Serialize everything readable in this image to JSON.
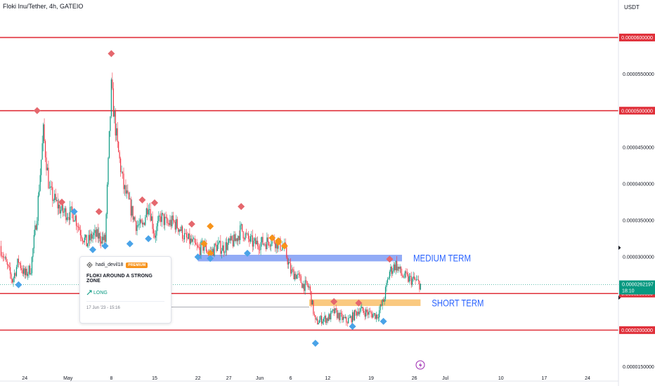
{
  "header": {
    "symbol_title": "Floki Inu/Tether, 4h, GATEIO",
    "currency": "USDT"
  },
  "colors": {
    "up": "#089981",
    "down": "#f23645",
    "level_line": "#e0303a",
    "medium_zone": "#7f9cf5",
    "short_zone": "#f9c06a",
    "zone_text": "#2962ff",
    "diamond_red": "#e5676d",
    "diamond_blue": "#4aa3e8",
    "diamond_orange": "#f7931a",
    "last_price_bg": "#089981",
    "level_label_bg": "#e0303a"
  },
  "annotations": {
    "medium_term": "MEDIUM TERM",
    "short_term": "SHORT TERM"
  },
  "idea_card": {
    "username": "hadi_devil18",
    "badge": "PREMIUM",
    "title": "FLOKI AROUND A STRONG ZONE",
    "direction": "LONG",
    "date": "17 Jun '23 - 15:16"
  },
  "chart_data": {
    "type": "candlestick",
    "x_tick_labels": [
      {
        "label": "24",
        "date": "2023-04-24"
      },
      {
        "label": "May",
        "date": "2023-05-01"
      },
      {
        "label": "8",
        "date": "2023-05-08"
      },
      {
        "label": "15",
        "date": "2023-05-15"
      },
      {
        "label": "22",
        "date": "2023-05-22"
      },
      {
        "label": "27",
        "date": "2023-05-27"
      },
      {
        "label": "Jun",
        "date": "2023-06-01"
      },
      {
        "label": "6",
        "date": "2023-06-06"
      },
      {
        "label": "12",
        "date": "2023-06-12"
      },
      {
        "label": "19",
        "date": "2023-06-19"
      },
      {
        "label": "26",
        "date": "2023-06-26"
      },
      {
        "label": "Jul",
        "date": "2023-07-01"
      },
      {
        "label": "10",
        "date": "2023-07-10"
      },
      {
        "label": "17",
        "date": "2023-07-17"
      },
      {
        "label": "24",
        "date": "2023-07-24"
      }
    ],
    "x_range": [
      "2023-04-20",
      "2023-07-29"
    ],
    "y_tick_labels": [
      "0.0000550000",
      "0.0000450000",
      "0.0000400000",
      "0.0000350000",
      "0.0000300000",
      "0.0000150000"
    ],
    "y_range": [
      1.38e-05,
      6.34e-05
    ],
    "horizontal_levels": [
      {
        "label": "0.0000600000",
        "value": 6e-05
      },
      {
        "label": "0.0000500000",
        "value": 5e-05
      },
      {
        "label": "0.0000250000",
        "value": 2.5e-05
      },
      {
        "label": "0.0000200000",
        "value": 2e-05
      }
    ],
    "last_price": {
      "label": "0.0000262197",
      "value": 2.62197e-05,
      "countdown": "18:10"
    },
    "zones": [
      {
        "name": "MEDIUM TERM",
        "from": "2023-05-22",
        "to": "2023-06-24",
        "low": 2.94e-05,
        "high": 3.03e-05
      },
      {
        "name": "SHORT TERM",
        "from": "2023-06-09",
        "to": "2023-06-27",
        "low": 2.33e-05,
        "high": 2.42e-05
      }
    ],
    "price_path": [
      {
        "d": "2023-04-20",
        "p": 3.15e-05
      },
      {
        "d": "2023-04-21",
        "p": 2.9e-05
      },
      {
        "d": "2023-04-22",
        "p": 2.68e-05
      },
      {
        "d": "2023-04-23",
        "p": 2.95e-05
      },
      {
        "d": "2023-04-24",
        "p": 2.75e-05
      },
      {
        "d": "2023-04-25",
        "p": 2.85e-05
      },
      {
        "d": "2023-04-26",
        "p": 3.6e-05
      },
      {
        "d": "2023-04-27",
        "p": 4.7e-05
      },
      {
        "d": "2023-04-28",
        "p": 3.9e-05
      },
      {
        "d": "2023-04-29",
        "p": 3.75e-05
      },
      {
        "d": "2023-04-30",
        "p": 3.62e-05
      },
      {
        "d": "2023-05-02",
        "p": 3.58e-05
      },
      {
        "d": "2023-05-03",
        "p": 3.35e-05
      },
      {
        "d": "2023-05-04",
        "p": 3.18e-05
      },
      {
        "d": "2023-05-05",
        "p": 3.3e-05
      },
      {
        "d": "2023-05-06",
        "p": 3.28e-05
      },
      {
        "d": "2023-05-07",
        "p": 3.22e-05
      },
      {
        "d": "2023-05-08",
        "p": 5.3e-05
      },
      {
        "d": "2023-05-09",
        "p": 4.5e-05
      },
      {
        "d": "2023-05-10",
        "p": 3.95e-05
      },
      {
        "d": "2023-05-11",
        "p": 3.7e-05
      },
      {
        "d": "2023-05-12",
        "p": 3.45e-05
      },
      {
        "d": "2023-05-13",
        "p": 3.4e-05
      },
      {
        "d": "2023-05-14",
        "p": 3.75e-05
      },
      {
        "d": "2023-05-15",
        "p": 3.3e-05
      },
      {
        "d": "2023-05-16",
        "p": 3.55e-05
      },
      {
        "d": "2023-05-17",
        "p": 3.45e-05
      },
      {
        "d": "2023-05-18",
        "p": 3.48e-05
      },
      {
        "d": "2023-05-19",
        "p": 3.4e-05
      },
      {
        "d": "2023-05-20",
        "p": 3.25e-05
      },
      {
        "d": "2023-05-21",
        "p": 3.2e-05
      },
      {
        "d": "2023-05-22",
        "p": 3.1e-05
      },
      {
        "d": "2023-05-23",
        "p": 3.15e-05
      },
      {
        "d": "2023-05-24",
        "p": 3.05e-05
      },
      {
        "d": "2023-05-25",
        "p": 3.15e-05
      },
      {
        "d": "2023-05-26",
        "p": 3.12e-05
      },
      {
        "d": "2023-05-27",
        "p": 3.18e-05
      },
      {
        "d": "2023-05-28",
        "p": 3.22e-05
      },
      {
        "d": "2023-05-29",
        "p": 3.38e-05
      },
      {
        "d": "2023-05-30",
        "p": 3.25e-05
      },
      {
        "d": "2023-05-31",
        "p": 3.18e-05
      },
      {
        "d": "2023-06-02",
        "p": 3.2e-05
      },
      {
        "d": "2023-06-03",
        "p": 3.25e-05
      },
      {
        "d": "2023-06-04",
        "p": 3.18e-05
      },
      {
        "d": "2023-06-05",
        "p": 3.12e-05
      },
      {
        "d": "2023-06-06",
        "p": 2.8e-05
      },
      {
        "d": "2023-06-07",
        "p": 2.75e-05
      },
      {
        "d": "2023-06-08",
        "p": 2.62e-05
      },
      {
        "d": "2023-06-09",
        "p": 2.58e-05
      },
      {
        "d": "2023-06-10",
        "p": 2.1e-05
      },
      {
        "d": "2023-06-11",
        "p": 2.15e-05
      },
      {
        "d": "2023-06-12",
        "p": 2.16e-05
      },
      {
        "d": "2023-06-13",
        "p": 2.25e-05
      },
      {
        "d": "2023-06-14",
        "p": 2.18e-05
      },
      {
        "d": "2023-06-15",
        "p": 2.12e-05
      },
      {
        "d": "2023-06-16",
        "p": 2.18e-05
      },
      {
        "d": "2023-06-17",
        "p": 2.28e-05
      },
      {
        "d": "2023-06-18",
        "p": 2.25e-05
      },
      {
        "d": "2023-06-19",
        "p": 2.22e-05
      },
      {
        "d": "2023-06-20",
        "p": 2.2e-05
      },
      {
        "d": "2023-06-21",
        "p": 2.4e-05
      },
      {
        "d": "2023-06-22",
        "p": 2.8e-05
      },
      {
        "d": "2023-06-23",
        "p": 2.9e-05
      },
      {
        "d": "2023-06-24",
        "p": 2.75e-05
      },
      {
        "d": "2023-06-25",
        "p": 2.7e-05
      },
      {
        "d": "2023-06-26",
        "p": 2.68e-05
      },
      {
        "d": "2023-06-27",
        "p": 2.62e-05
      }
    ],
    "diamond_markers": [
      {
        "d": "2023-04-23",
        "p": 2.62e-05,
        "color": "blue"
      },
      {
        "d": "2023-04-26",
        "p": 5e-05,
        "color": "red"
      },
      {
        "d": "2023-04-30",
        "p": 3.75e-05,
        "color": "red"
      },
      {
        "d": "2023-05-02",
        "p": 3.62e-05,
        "color": "blue"
      },
      {
        "d": "2023-05-05",
        "p": 3.1e-05,
        "color": "blue"
      },
      {
        "d": "2023-05-06",
        "p": 3.62e-05,
        "color": "red"
      },
      {
        "d": "2023-05-07",
        "p": 3.15e-05,
        "color": "blue"
      },
      {
        "d": "2023-05-08",
        "p": 5.78e-05,
        "color": "red"
      },
      {
        "d": "2023-05-11",
        "p": 3.18e-05,
        "color": "blue"
      },
      {
        "d": "2023-05-13",
        "p": 3.78e-05,
        "color": "red"
      },
      {
        "d": "2023-05-14",
        "p": 3.25e-05,
        "color": "blue"
      },
      {
        "d": "2023-05-15",
        "p": 3.74e-05,
        "color": "red"
      },
      {
        "d": "2023-05-21",
        "p": 3.45e-05,
        "color": "red"
      },
      {
        "d": "2023-05-22",
        "p": 3e-05,
        "color": "blue"
      },
      {
        "d": "2023-05-23",
        "p": 3.18e-05,
        "color": "orange"
      },
      {
        "d": "2023-05-24",
        "p": 3.42e-05,
        "color": "orange"
      },
      {
        "d": "2023-05-24",
        "p": 3.05e-05,
        "color": "orange"
      },
      {
        "d": "2023-05-24",
        "p": 2.98e-05,
        "color": "blue"
      },
      {
        "d": "2023-05-29",
        "p": 3.69e-05,
        "color": "red"
      },
      {
        "d": "2023-05-30",
        "p": 3.05e-05,
        "color": "blue"
      },
      {
        "d": "2023-06-03",
        "p": 3.26e-05,
        "color": "orange"
      },
      {
        "d": "2023-06-04",
        "p": 3.22e-05,
        "color": "orange"
      },
      {
        "d": "2023-06-04",
        "p": 3.2e-05,
        "color": "orange"
      },
      {
        "d": "2023-06-05",
        "p": 3.15e-05,
        "color": "orange"
      },
      {
        "d": "2023-06-10",
        "p": 1.82e-05,
        "color": "blue"
      },
      {
        "d": "2023-06-13",
        "p": 2.39e-05,
        "color": "red"
      },
      {
        "d": "2023-06-16",
        "p": 2.05e-05,
        "color": "blue"
      },
      {
        "d": "2023-06-17",
        "p": 2.37e-05,
        "color": "red"
      },
      {
        "d": "2023-06-21",
        "p": 2.12e-05,
        "color": "blue"
      },
      {
        "d": "2023-06-22",
        "p": 2.97e-05,
        "color": "red"
      }
    ]
  }
}
